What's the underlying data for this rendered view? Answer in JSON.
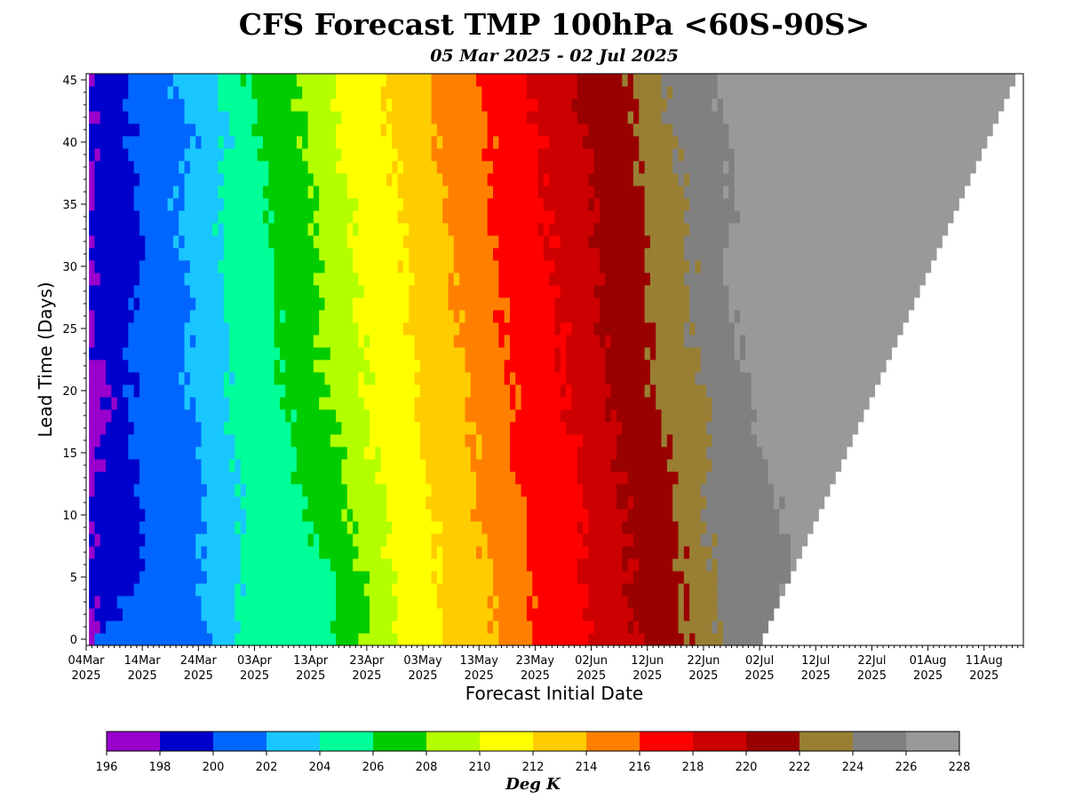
{
  "chart_data": {
    "type": "heatmap",
    "title": "CFS Forecast TMP 100hPa <60S-90S>",
    "subtitle": "05 Mar 2025 - 02 Jul 2025",
    "xlabel": "Forecast Initial Date",
    "ylabel": "Lead Time (Days)",
    "colorbar_label": "Deg K",
    "x_start": "2025-03-04",
    "x_end": "2025-08-18",
    "first_init": "2025-03-05",
    "last_init": "2025-07-02",
    "ylim": [
      -0.5,
      45.5
    ],
    "y_ticks": [
      0,
      5,
      10,
      15,
      20,
      25,
      30,
      35,
      40,
      45
    ],
    "x_ticks": [
      {
        "date": "2025-03-04",
        "label": "04Mar",
        "year": "2025"
      },
      {
        "date": "2025-03-14",
        "label": "14Mar",
        "year": "2025"
      },
      {
        "date": "2025-03-24",
        "label": "24Mar",
        "year": "2025"
      },
      {
        "date": "2025-04-03",
        "label": "03Apr",
        "year": "2025"
      },
      {
        "date": "2025-04-13",
        "label": "13Apr",
        "year": "2025"
      },
      {
        "date": "2025-04-23",
        "label": "23Apr",
        "year": "2025"
      },
      {
        "date": "2025-05-03",
        "label": "03May",
        "year": "2025"
      },
      {
        "date": "2025-05-13",
        "label": "13May",
        "year": "2025"
      },
      {
        "date": "2025-05-23",
        "label": "23May",
        "year": "2025"
      },
      {
        "date": "2025-06-02",
        "label": "02Jun",
        "year": "2025"
      },
      {
        "date": "2025-06-12",
        "label": "12Jun",
        "year": "2025"
      },
      {
        "date": "2025-06-22",
        "label": "22Jun",
        "year": "2025"
      },
      {
        "date": "2025-07-02",
        "label": "02Jul",
        "year": "2025"
      },
      {
        "date": "2025-07-12",
        "label": "12Jul",
        "year": "2025"
      },
      {
        "date": "2025-07-22",
        "label": "22Jul",
        "year": "2025"
      },
      {
        "date": "2025-08-01",
        "label": "01Aug",
        "year": "2025"
      },
      {
        "date": "2025-08-11",
        "label": "11Aug",
        "year": "2025"
      }
    ],
    "levels": [
      196,
      198,
      200,
      202,
      204,
      206,
      208,
      210,
      212,
      214,
      216,
      218,
      220,
      222,
      224,
      226,
      228
    ],
    "colors": [
      "#9900cc",
      "#0000cc",
      "#0066ff",
      "#1ac6ff",
      "#00ff99",
      "#00cc00",
      "#b3ff00",
      "#ffff00",
      "#ffcc00",
      "#ff8000",
      "#ff0000",
      "#cc0000",
      "#990000",
      "#997f33",
      "#808080",
      "#999999"
    ],
    "band_boundaries_by_lead": [
      {
        "lead": 0,
        "dates": [
          "2025-03-05",
          "2025-03-06",
          "2025-03-25",
          "2025-03-31",
          "2025-04-18",
          "2025-04-23",
          "2025-04-28",
          "2025-05-07",
          "2025-05-16",
          "2025-05-23",
          "2025-06-01",
          "2025-06-10",
          "2025-06-19",
          "2025-06-24",
          "2025-07-04"
        ]
      },
      {
        "lead": 5,
        "dates": [
          "2025-03-05",
          "2025-03-14",
          "2025-03-24",
          "2025-03-31",
          "2025-04-17",
          "2025-04-22",
          "2025-04-28",
          "2025-05-06",
          "2025-05-15",
          "2025-05-22",
          "2025-06-01",
          "2025-06-09",
          "2025-06-18",
          "2025-06-24",
          "2025-07-07"
        ]
      },
      {
        "lead": 10,
        "dates": [
          "2025-03-05",
          "2025-03-14",
          "2025-03-25",
          "2025-04-01",
          "2025-04-12",
          "2025-04-20",
          "2025-04-26",
          "2025-05-05",
          "2025-05-13",
          "2025-05-21",
          "2025-05-31",
          "2025-06-08",
          "2025-06-17",
          "2025-06-22",
          "2025-07-06"
        ]
      },
      {
        "lead": 15,
        "dates": [
          "2025-03-06",
          "2025-03-13",
          "2025-03-24",
          "2025-03-31",
          "2025-04-10",
          "2025-04-18",
          "2025-04-24",
          "2025-05-03",
          "2025-05-12",
          "2025-05-19",
          "2025-05-30",
          "2025-06-07",
          "2025-06-16",
          "2025-06-23",
          "2025-07-03"
        ]
      },
      {
        "lead": 20,
        "dates": [
          "2025-03-08",
          "2025-03-12",
          "2025-03-22",
          "2025-03-29",
          "2025-04-08",
          "2025-04-16",
          "2025-04-23",
          "2025-05-02",
          "2025-05-11",
          "2025-05-19",
          "2025-05-28",
          "2025-06-05",
          "2025-06-13",
          "2025-06-23",
          "2025-07-01"
        ]
      },
      {
        "lead": 25,
        "dates": [
          "2025-03-05",
          "2025-03-12",
          "2025-03-23",
          "2025-03-29",
          "2025-04-07",
          "2025-04-14",
          "2025-04-22",
          "2025-05-01",
          "2025-05-09",
          "2025-05-17",
          "2025-05-28",
          "2025-06-04",
          "2025-06-13",
          "2025-06-19",
          "2025-06-28"
        ]
      },
      {
        "lead": 30,
        "dates": [
          "2025-03-05",
          "2025-03-14",
          "2025-03-22",
          "2025-03-29",
          "2025-04-06",
          "2025-04-15",
          "2025-04-21",
          "2025-04-30",
          "2025-05-08",
          "2025-05-17",
          "2025-05-26",
          "2025-06-03",
          "2025-06-12",
          "2025-06-20",
          "2025-06-25"
        ]
      },
      {
        "lead": 35,
        "dates": [
          "2025-03-05",
          "2025-03-13",
          "2025-03-20",
          "2025-03-27",
          "2025-04-05",
          "2025-04-14",
          "2025-04-20",
          "2025-04-29",
          "2025-05-07",
          "2025-05-15",
          "2025-05-25",
          "2025-06-02",
          "2025-06-11",
          "2025-06-19",
          "2025-06-27"
        ]
      },
      {
        "lead": 40,
        "dates": [
          "2025-03-05",
          "2025-03-12",
          "2025-03-23",
          "2025-03-29",
          "2025-04-04",
          "2025-04-12",
          "2025-04-18",
          "2025-04-27",
          "2025-05-05",
          "2025-05-15",
          "2025-05-24",
          "2025-06-01",
          "2025-06-10",
          "2025-06-17",
          "2025-06-27"
        ]
      },
      {
        "lead": 45,
        "dates": [
          "2025-03-05",
          "2025-03-11",
          "2025-03-19",
          "2025-03-28",
          "2025-04-01",
          "2025-04-10",
          "2025-04-17",
          "2025-04-25",
          "2025-05-04",
          "2025-05-13",
          "2025-05-22",
          "2025-05-30",
          "2025-06-09",
          "2025-06-15",
          "2025-06-24"
        ]
      }
    ]
  }
}
